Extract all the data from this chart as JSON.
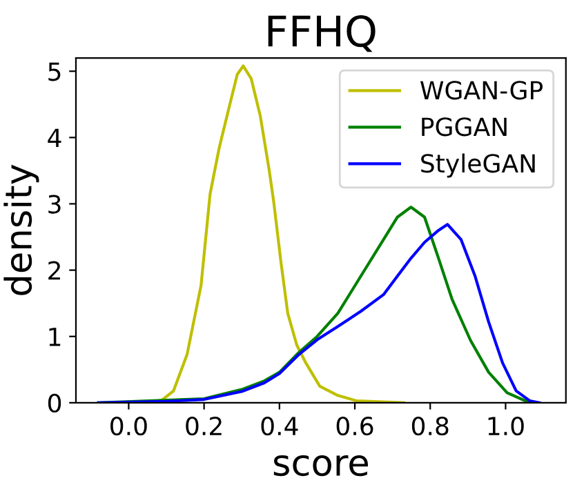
{
  "chart_data": {
    "type": "line",
    "title": "FFHQ",
    "xlabel": "score",
    "ylabel": "density",
    "xlim": [
      -0.14,
      1.16
    ],
    "ylim": [
      0,
      5.2
    ],
    "xticks": [
      {
        "value": 0.0,
        "label": "0.0"
      },
      {
        "value": 0.2,
        "label": "0.2"
      },
      {
        "value": 0.4,
        "label": "0.4"
      },
      {
        "value": 0.6,
        "label": "0.6"
      },
      {
        "value": 0.8,
        "label": "0.8"
      },
      {
        "value": 1.0,
        "label": "1.0"
      }
    ],
    "yticks": [
      0,
      1,
      2,
      3,
      4,
      5
    ],
    "grid": false,
    "legend": "top right",
    "marker": "none",
    "line_style": "solid",
    "series": [
      {
        "name": "WGAN-GP",
        "color": "#bfbf00",
        "x": [
          0.05,
          0.088,
          0.119,
          0.155,
          0.192,
          0.216,
          0.24,
          0.264,
          0.288,
          0.304,
          0.325,
          0.349,
          0.373,
          0.385,
          0.404,
          0.422,
          0.446,
          0.47,
          0.507,
          0.555,
          0.604,
          0.73
        ],
        "values": [
          0,
          0.04,
          0.18,
          0.73,
          1.77,
          3.15,
          3.84,
          4.4,
          4.95,
          5.08,
          4.89,
          4.33,
          3.5,
          3.02,
          2.12,
          1.35,
          0.87,
          0.6,
          0.25,
          0.11,
          0.03,
          0
        ]
      },
      {
        "name": "PGGAN",
        "color": "#008000",
        "x": [
          -0.08,
          0.2,
          0.3,
          0.36,
          0.4,
          0.45,
          0.5,
          0.555,
          0.616,
          0.676,
          0.713,
          0.749,
          0.785,
          0.822,
          0.858,
          0.907,
          0.955,
          1.004,
          1.052,
          1.07
        ],
        "values": [
          0,
          0.06,
          0.2,
          0.33,
          0.46,
          0.75,
          1.0,
          1.35,
          1.91,
          2.46,
          2.8,
          2.95,
          2.8,
          2.18,
          1.56,
          0.94,
          0.46,
          0.15,
          0.03,
          0
        ]
      },
      {
        "name": "StyleGAN",
        "color": "#0000ff",
        "x": [
          -0.08,
          0.1,
          0.2,
          0.3,
          0.36,
          0.4,
          0.45,
          0.5,
          0.555,
          0.616,
          0.676,
          0.713,
          0.749,
          0.785,
          0.822,
          0.846,
          0.882,
          0.919,
          0.955,
          0.992,
          1.028,
          1.064,
          1.09
        ],
        "values": [
          0,
          0.02,
          0.05,
          0.17,
          0.3,
          0.44,
          0.72,
          0.95,
          1.15,
          1.38,
          1.63,
          1.91,
          2.18,
          2.42,
          2.6,
          2.69,
          2.46,
          1.91,
          1.22,
          0.6,
          0.18,
          0.03,
          0
        ]
      }
    ]
  }
}
